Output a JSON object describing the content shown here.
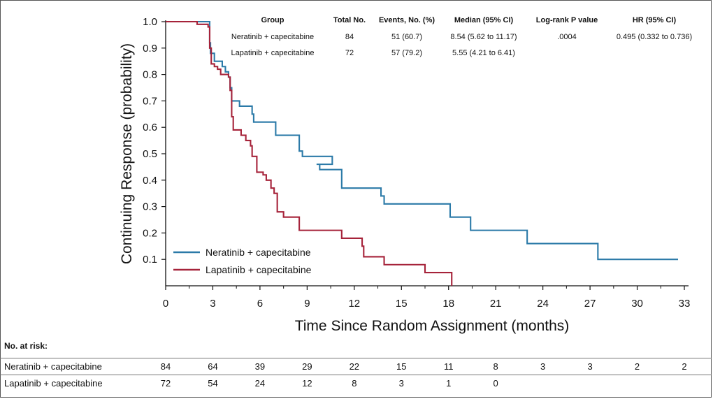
{
  "chart_data": {
    "type": "line",
    "step": true,
    "xlabel": "Time Since Random Assignment (months)",
    "ylabel": "Continuing Response (probability)",
    "xlim": [
      0,
      33
    ],
    "ylim": [
      0,
      1.0
    ],
    "xticks": [
      0,
      3,
      6,
      9,
      12,
      15,
      18,
      21,
      24,
      27,
      30,
      33
    ],
    "yticks": [
      0.1,
      0.2,
      0.3,
      0.4,
      0.5,
      0.6,
      0.7,
      0.8,
      0.9,
      1.0
    ],
    "ytick_labels": [
      "0.1",
      "0.2",
      "0.3",
      "0.4",
      "0.5",
      "0.6",
      "0.7",
      "0.8",
      "0.9",
      "1.0"
    ],
    "grid": false,
    "legend_position": "bottom-left",
    "series": [
      {
        "name": "Neratinib + capecitabine",
        "color": "#2b7aa8",
        "points": [
          [
            0,
            1.0
          ],
          [
            2.7,
            1.0
          ],
          [
            2.8,
            0.92
          ],
          [
            2.85,
            0.88
          ],
          [
            3.1,
            0.85
          ],
          [
            3.6,
            0.83
          ],
          [
            3.8,
            0.81
          ],
          [
            4.0,
            0.79
          ],
          [
            4.1,
            0.75
          ],
          [
            4.2,
            0.7
          ],
          [
            4.7,
            0.68
          ],
          [
            5.5,
            0.65
          ],
          [
            5.6,
            0.62
          ],
          [
            7.0,
            0.57
          ],
          [
            8.5,
            0.51
          ],
          [
            8.7,
            0.49
          ],
          [
            10.6,
            0.46
          ],
          [
            9.6,
            0.46
          ],
          [
            9.8,
            0.44
          ],
          [
            11.2,
            0.37
          ],
          [
            13.7,
            0.34
          ],
          [
            13.9,
            0.31
          ],
          [
            18.1,
            0.26
          ],
          [
            19.4,
            0.21
          ],
          [
            23.0,
            0.16
          ],
          [
            27.5,
            0.1
          ],
          [
            32.6,
            0.1
          ]
        ]
      },
      {
        "name": "Lapatinib + capecitabine",
        "color": "#a6233a",
        "points": [
          [
            0,
            1.0
          ],
          [
            1.9,
            1.0
          ],
          [
            2.0,
            0.99
          ],
          [
            2.7,
            0.98
          ],
          [
            2.8,
            0.9
          ],
          [
            2.9,
            0.84
          ],
          [
            3.1,
            0.83
          ],
          [
            3.3,
            0.82
          ],
          [
            3.5,
            0.8
          ],
          [
            4.0,
            0.79
          ],
          [
            4.1,
            0.74
          ],
          [
            4.2,
            0.64
          ],
          [
            4.3,
            0.59
          ],
          [
            4.8,
            0.57
          ],
          [
            5.1,
            0.55
          ],
          [
            5.4,
            0.53
          ],
          [
            5.5,
            0.49
          ],
          [
            5.8,
            0.43
          ],
          [
            6.2,
            0.42
          ],
          [
            6.4,
            0.4
          ],
          [
            6.7,
            0.37
          ],
          [
            6.9,
            0.35
          ],
          [
            7.1,
            0.28
          ],
          [
            7.5,
            0.26
          ],
          [
            8.5,
            0.21
          ],
          [
            11.2,
            0.18
          ],
          [
            12.5,
            0.15
          ],
          [
            12.6,
            0.11
          ],
          [
            13.9,
            0.08
          ],
          [
            16.5,
            0.05
          ],
          [
            18.2,
            0.05
          ],
          [
            18.2,
            0.0
          ]
        ]
      }
    ],
    "stats_table": {
      "headers": [
        "Group",
        "Total No.",
        "Events, No. (%)",
        "Median (95% CI)",
        "Log-rank P value",
        "HR (95% CI)"
      ],
      "rows": [
        [
          "Neratinib + capecitabine",
          "84",
          "51 (60.7)",
          "8.54 (5.62 to 11.17)",
          ".0004",
          "0.495 (0.332 to 0.736)"
        ],
        [
          "Lapatinib + capecitabine",
          "72",
          "57 (79.2)",
          "5.55 (4.21 to 6.41)",
          "",
          ""
        ]
      ]
    },
    "at_risk": {
      "title": "No. at risk:",
      "rows": [
        {
          "label": "Neratinib + capecitabine",
          "values": [
            "84",
            "64",
            "39",
            "29",
            "22",
            "15",
            "11",
            "8",
            "3",
            "3",
            "2",
            "2"
          ]
        },
        {
          "label": "Lapatinib + capecitabine",
          "values": [
            "72",
            "54",
            "24",
            "12",
            "8",
            "3",
            "1",
            "0"
          ]
        }
      ]
    }
  }
}
